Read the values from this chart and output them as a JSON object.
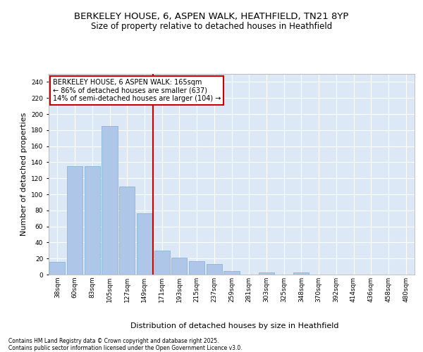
{
  "title_line1": "BERKELEY HOUSE, 6, ASPEN WALK, HEATHFIELD, TN21 8YP",
  "title_line2": "Size of property relative to detached houses in Heathfield",
  "xlabel": "Distribution of detached houses by size in Heathfield",
  "ylabel": "Number of detached properties",
  "categories": [
    "38sqm",
    "60sqm",
    "83sqm",
    "105sqm",
    "127sqm",
    "149sqm",
    "171sqm",
    "193sqm",
    "215sqm",
    "237sqm",
    "259sqm",
    "281sqm",
    "303sqm",
    "325sqm",
    "348sqm",
    "370sqm",
    "392sqm",
    "414sqm",
    "436sqm",
    "458sqm",
    "480sqm"
  ],
  "values": [
    16,
    135,
    135,
    185,
    110,
    76,
    30,
    21,
    17,
    13,
    4,
    0,
    3,
    0,
    3,
    0,
    0,
    0,
    0,
    0,
    0
  ],
  "bar_color": "#aec6e8",
  "bar_edge_color": "#7bafd4",
  "vline_color": "#cc0000",
  "vline_pos": 5.5,
  "annotation_text": "BERKELEY HOUSE, 6 ASPEN WALK: 165sqm\n← 86% of detached houses are smaller (637)\n14% of semi-detached houses are larger (104) →",
  "annotation_box_color": "#ffffff",
  "annotation_box_edge": "#cc0000",
  "ylim": [
    0,
    250
  ],
  "yticks": [
    0,
    20,
    40,
    60,
    80,
    100,
    120,
    140,
    160,
    180,
    200,
    220,
    240
  ],
  "background_color": "#dce8f5",
  "footer_text": "Contains HM Land Registry data © Crown copyright and database right 2025.\nContains public sector information licensed under the Open Government Licence v3.0.",
  "grid_color": "#ffffff",
  "title_fontsize": 9.5,
  "subtitle_fontsize": 8.5,
  "tick_fontsize": 6.5,
  "label_fontsize": 8,
  "annotation_fontsize": 7
}
